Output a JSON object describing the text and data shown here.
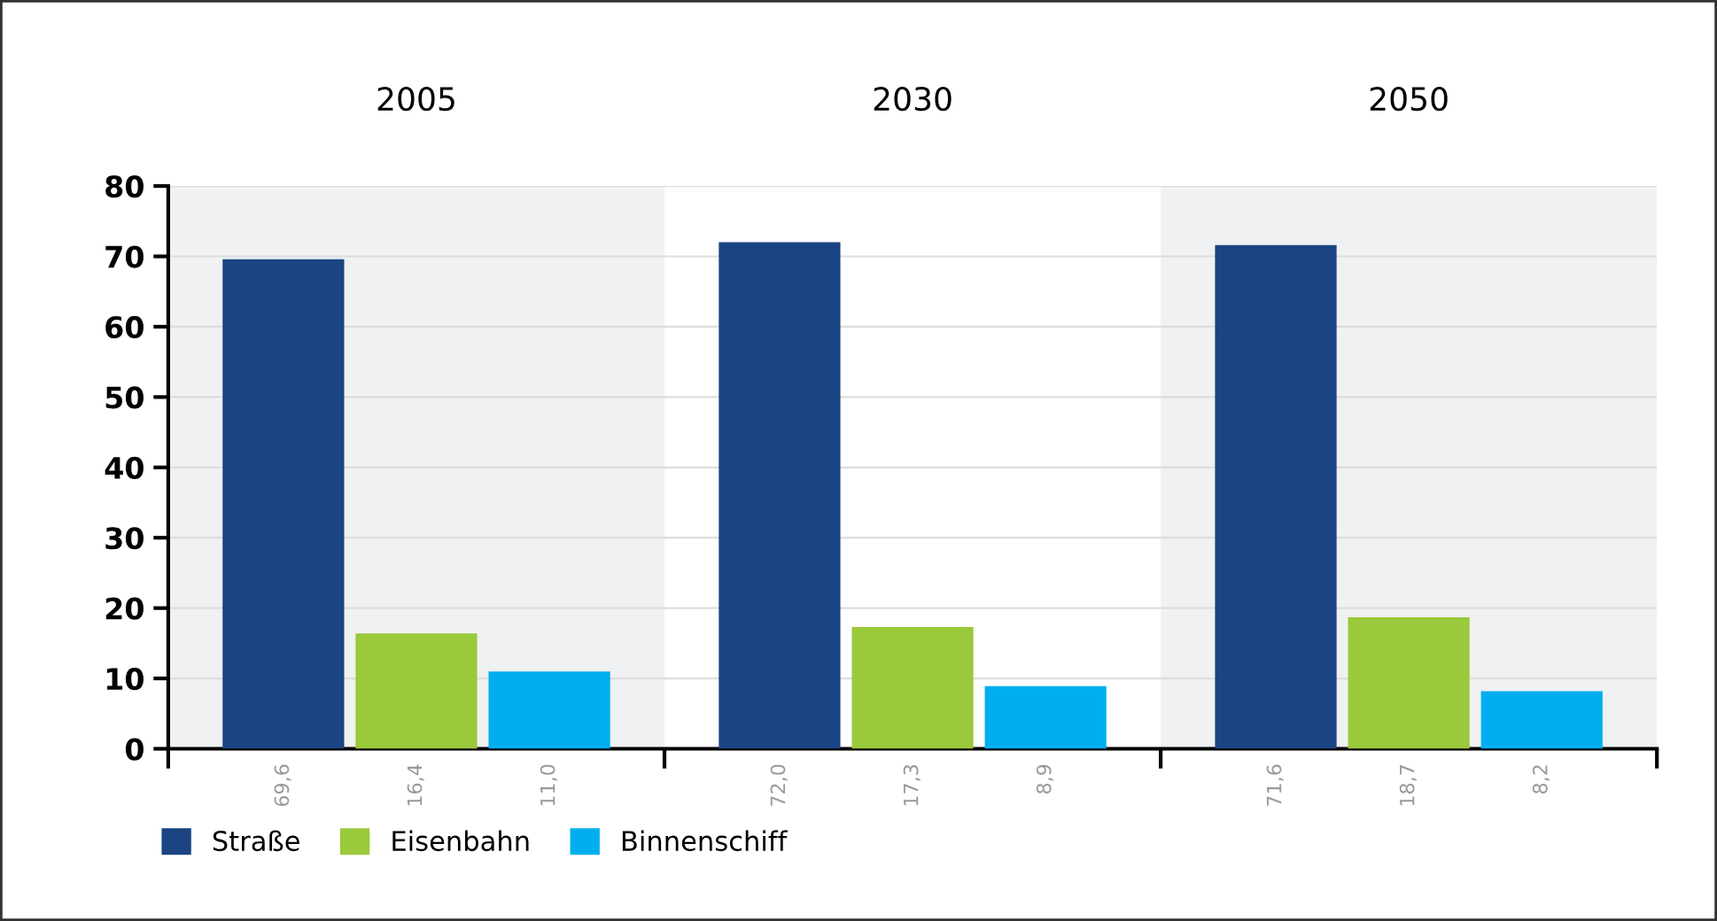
{
  "chart_data": {
    "type": "bar",
    "categories": [
      "2005",
      "2030",
      "2050"
    ],
    "series": [
      {
        "name": "Straße",
        "color": "#1a4482",
        "values": [
          69.6,
          72.0,
          71.6
        ],
        "value_labels": [
          "69,6",
          "72,0",
          "71,6"
        ]
      },
      {
        "name": "Eisenbahn",
        "color": "#9ac93b",
        "values": [
          16.4,
          17.3,
          18.7
        ],
        "value_labels": [
          "16,4",
          "17,3",
          "18,7"
        ]
      },
      {
        "name": "Binnenschiff",
        "color": "#00aeef",
        "values": [
          11.0,
          8.9,
          8.2
        ],
        "value_labels": [
          "11,0",
          "8,9",
          "8,2"
        ]
      }
    ],
    "ylim": [
      0,
      80
    ],
    "yticks": [
      0,
      10,
      20,
      30,
      40,
      50,
      60,
      70,
      80
    ],
    "grid": "y",
    "legend": "bottom left",
    "bands": [
      {
        "axis": "x",
        "from": "2005",
        "to": "2005",
        "color": "#f0f1f3"
      },
      {
        "axis": "x",
        "from": "2050",
        "to": "2050",
        "color": "#f0f1f3"
      }
    ]
  }
}
